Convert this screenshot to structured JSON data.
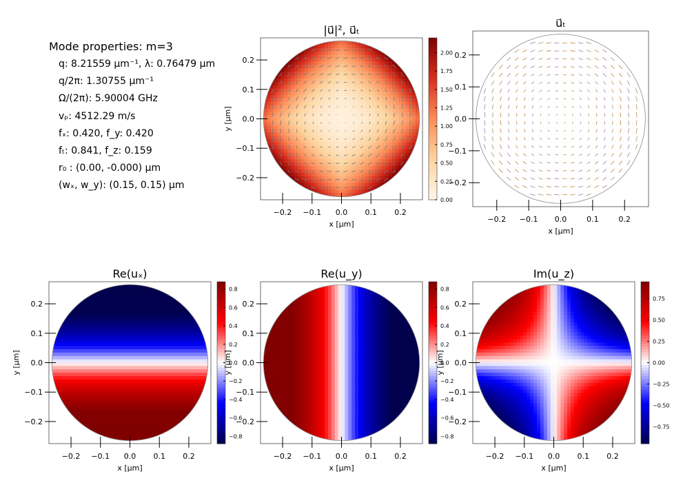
{
  "properties": {
    "title": "Mode properties: m=3",
    "lines": [
      "q: 8.21559 μm⁻¹, λ:  0.76479 μm",
      "q/2π: 1.30755 μm⁻¹",
      "Ω/(2π): 5.90004 GHz",
      "vₚ: 4512.29 m/s",
      "fₓ:  0.420, f_y: 0.420",
      "fₜ:  0.841, f_z: 0.159",
      "r₀ :  (0.00, -0.000) μm",
      "(wₓ, w_y):  (0.15, 0.15) μm"
    ]
  },
  "chart_data": [
    {
      "id": "intensity",
      "type": "heatmap",
      "title": "|u⃗|²,  u⃗ₜ",
      "xlabel": "x [μm]",
      "ylabel": "y [μm]",
      "xlim": [
        -0.275,
        0.275
      ],
      "ylim": [
        -0.275,
        0.275
      ],
      "xticks": [
        -0.2,
        -0.1,
        0.0,
        0.1,
        0.2
      ],
      "yticks": [
        -0.2,
        -0.1,
        0.0,
        0.1,
        0.2
      ],
      "xtick_labels": [
        "−0.2",
        "−0.1",
        "0.0",
        "0.1",
        "0.2"
      ],
      "ytick_labels": [
        "−0.2",
        "−0.1",
        "0.0",
        "0.1",
        "0.2"
      ],
      "colormap": "OrRd",
      "colorbar": {
        "range": [
          0,
          2.2
        ],
        "ticks": [
          0.0,
          0.25,
          0.5,
          0.75,
          1.0,
          1.25,
          1.5,
          1.75,
          2.0
        ],
        "labels": [
          "0.00",
          "0.25",
          "0.50",
          "0.75",
          "1.00",
          "1.25",
          "1.50",
          "1.75",
          "2.00"
        ]
      },
      "overlay": "arrows"
    },
    {
      "id": "transverse",
      "type": "quiver",
      "title": "u⃗ₜ",
      "xlabel": "x [μm]",
      "ylabel": "",
      "xlim": [
        -0.275,
        0.275
      ],
      "ylim": [
        -0.275,
        0.275
      ],
      "xticks": [
        -0.2,
        -0.1,
        0.0,
        0.1,
        0.2
      ],
      "yticks": [
        -0.2,
        -0.1,
        0.0,
        0.1,
        0.2
      ],
      "xtick_labels": [
        "−0.2",
        "−0.1",
        "0.0",
        "0.1",
        "0.2"
      ],
      "ytick_labels": [
        "−0.2",
        "−0.1",
        "0.0",
        "0.1",
        "0.2"
      ]
    },
    {
      "id": "reux",
      "type": "heatmap",
      "title": "Re(uₓ)",
      "xlabel": "x [μm]",
      "ylabel": "y [μm]",
      "xlim": [
        -0.275,
        0.275
      ],
      "ylim": [
        -0.275,
        0.275
      ],
      "xticks": [
        -0.2,
        -0.1,
        0.0,
        0.1,
        0.2
      ],
      "yticks": [
        -0.2,
        -0.1,
        0.0,
        0.1,
        0.2
      ],
      "xtick_labels": [
        "−0.2",
        "−0.1",
        "0.0",
        "0.1",
        "0.2"
      ],
      "ytick_labels": [
        "−0.2",
        "−0.1",
        "0.0",
        "0.1",
        "0.2"
      ],
      "colormap": "seismic",
      "colorbar": {
        "range": [
          -0.88,
          0.88
        ],
        "ticks": [
          -0.8,
          -0.6,
          -0.4,
          -0.2,
          0.0,
          0.2,
          0.4,
          0.6,
          0.8
        ],
        "labels": [
          "−0.8",
          "−0.6",
          "−0.4",
          "−0.2",
          "0.0",
          "0.2",
          "0.4",
          "0.6",
          "0.8"
        ]
      }
    },
    {
      "id": "reuy",
      "type": "heatmap",
      "title": "Re(u_y)",
      "xlabel": "x [μm]",
      "ylabel": "y [μm]",
      "xlim": [
        -0.275,
        0.275
      ],
      "ylim": [
        -0.275,
        0.275
      ],
      "xticks": [
        -0.2,
        -0.1,
        0.0,
        0.1,
        0.2
      ],
      "yticks": [
        -0.2,
        -0.1,
        0.0,
        0.1,
        0.2
      ],
      "xtick_labels": [
        "−0.2",
        "−0.1",
        "0.0",
        "0.1",
        "0.2"
      ],
      "ytick_labels": [
        "−0.2",
        "−0.1",
        "0.0",
        "0.1",
        "0.2"
      ],
      "colormap": "seismic",
      "colorbar": {
        "range": [
          -0.88,
          0.88
        ],
        "ticks": [
          -0.8,
          -0.6,
          -0.4,
          -0.2,
          0.0,
          0.2,
          0.4,
          0.6,
          0.8
        ],
        "labels": [
          "−0.8",
          "−0.6",
          "−0.4",
          "−0.2",
          "0.0",
          "0.2",
          "0.4",
          "0.6",
          "0.8"
        ]
      }
    },
    {
      "id": "imuz",
      "type": "heatmap",
      "title": "Im(u_z)",
      "xlabel": "x [μm]",
      "ylabel": "y [μm]",
      "xlim": [
        -0.275,
        0.275
      ],
      "ylim": [
        -0.275,
        0.275
      ],
      "xticks": [
        -0.2,
        -0.1,
        0.0,
        0.1,
        0.2
      ],
      "yticks": [
        -0.2,
        -0.1,
        0.0,
        0.1,
        0.2
      ],
      "xtick_labels": [
        "−0.2",
        "−0.1",
        "0.0",
        "0.1",
        "0.2"
      ],
      "ytick_labels": [
        "−0.2",
        "−0.1",
        "0.0",
        "0.1",
        "0.2"
      ],
      "colormap": "seismic",
      "colorbar": {
        "range": [
          -0.95,
          0.95
        ],
        "ticks": [
          -0.75,
          -0.5,
          -0.25,
          0.0,
          0.25,
          0.5,
          0.75
        ],
        "labels": [
          "−0.75",
          "−0.50",
          "−0.25",
          "0.00",
          "0.25",
          "0.50",
          "0.75"
        ]
      }
    }
  ]
}
